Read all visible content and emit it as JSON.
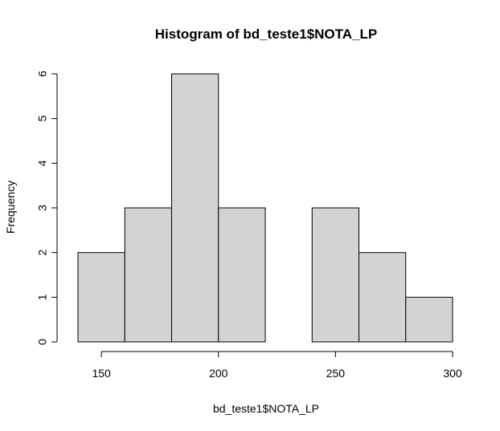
{
  "chart_data": {
    "type": "bar",
    "title": "Histogram of bd_teste1$NOTA_LP",
    "xlabel": "bd_teste1$NOTA_LP",
    "ylabel": "Frequency",
    "bins": [
      {
        "start": 140,
        "end": 160,
        "count": 2
      },
      {
        "start": 160,
        "end": 180,
        "count": 3
      },
      {
        "start": 180,
        "end": 200,
        "count": 6
      },
      {
        "start": 200,
        "end": 220,
        "count": 3
      },
      {
        "start": 220,
        "end": 240,
        "count": 0
      },
      {
        "start": 240,
        "end": 260,
        "count": 3
      },
      {
        "start": 260,
        "end": 280,
        "count": 2
      },
      {
        "start": 280,
        "end": 300,
        "count": 1
      }
    ],
    "xlim": [
      140,
      300
    ],
    "ylim": [
      0,
      6
    ],
    "x_ticks": [
      150,
      200,
      250,
      300
    ],
    "y_ticks": [
      0,
      1,
      2,
      3,
      4,
      5,
      6
    ],
    "grid": false,
    "legend": "none",
    "colors": {
      "bar_fill": "#d3d3d3",
      "bar_stroke": "#000000",
      "axis": "#000000",
      "background": "#ffffff"
    }
  }
}
